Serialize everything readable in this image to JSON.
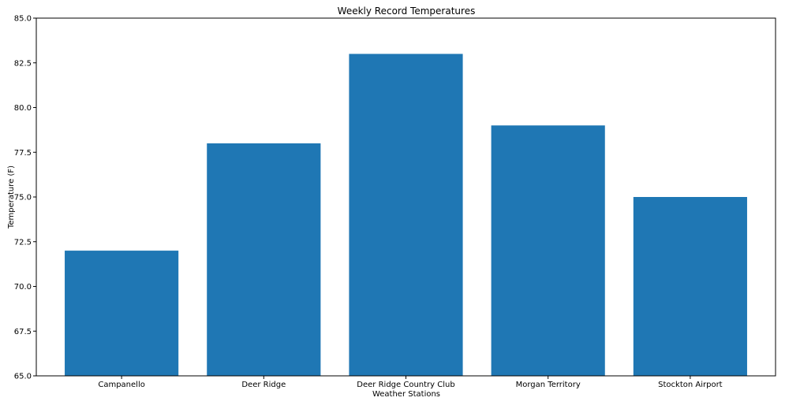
{
  "chart_data": {
    "type": "bar",
    "title": "Weekly Record Temperatures",
    "xlabel": "Weather Stations",
    "ylabel": "Temperature (F)",
    "categories": [
      "Campanello",
      "Deer Ridge",
      "Deer Ridge Country Club",
      "Morgan Territory",
      "Stockton Airport"
    ],
    "values": [
      72,
      78,
      83,
      79,
      75
    ],
    "ylim": [
      65,
      85
    ],
    "yticks": [
      "65.0",
      "67.5",
      "70.0",
      "72.5",
      "75.0",
      "77.5",
      "80.0",
      "82.5",
      "85.0"
    ],
    "bar_color": "#1f77b4",
    "grid": false
  }
}
